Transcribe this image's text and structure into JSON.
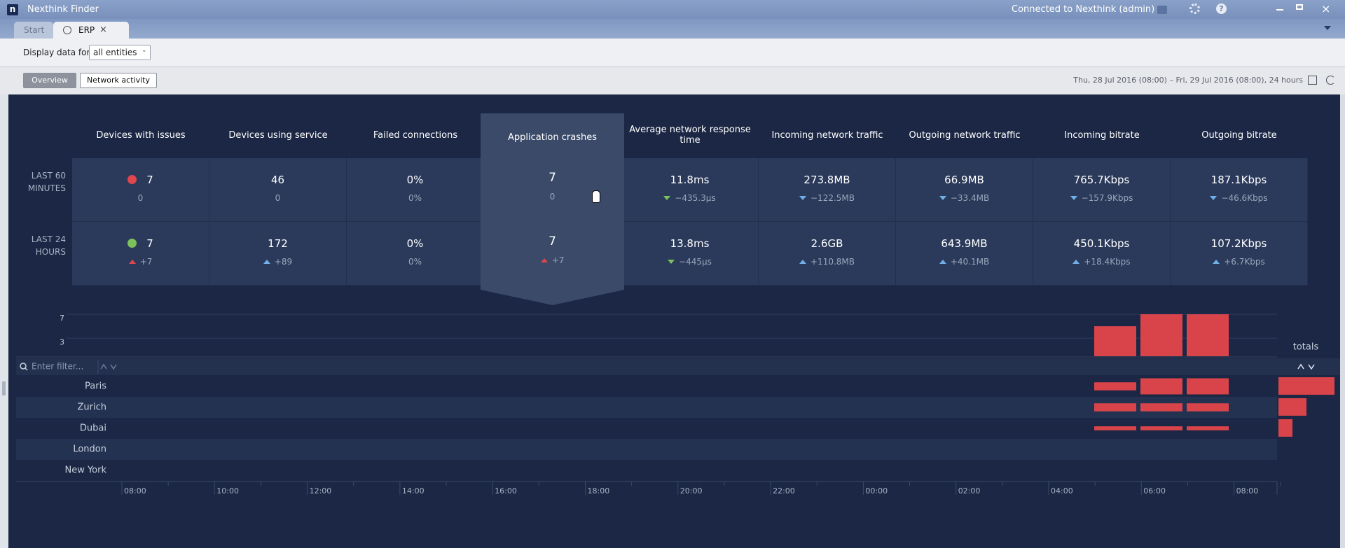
{
  "window": {
    "title": "Nexthink Finder",
    "connection": "Connected to Nexthink (admin)"
  },
  "tabs": [
    {
      "label": "Start",
      "active": false
    },
    {
      "label": "ERP",
      "active": true
    }
  ],
  "filter": {
    "label": "Display data for",
    "value": "all entities"
  },
  "views": [
    {
      "label": "Overview",
      "active": true
    },
    {
      "label": "Network activity",
      "active": false
    }
  ],
  "period": "Thu, 28 Jul 2016 (08:00) – Fri, 29 Jul 2016 (08:00), 24 hours",
  "metrics": {
    "columns": [
      "Devices with issues",
      "Devices using service",
      "Failed connections",
      "Application crashes",
      "Average network response time",
      "Incoming network traffic",
      "Outgoing network traffic",
      "Incoming bitrate",
      "Outgoing bitrate"
    ],
    "selected_column": 3,
    "rows": [
      {
        "label": "LAST 60 MINUTES",
        "cells": [
          {
            "value": "7",
            "delta": "0",
            "status_color": "#e0464c"
          },
          {
            "value": "46",
            "delta": "0"
          },
          {
            "value": "0%",
            "delta": "0%"
          },
          {
            "value": "7",
            "delta": "0"
          },
          {
            "value": "11.8ms",
            "delta": "−435.3µs",
            "trend": "down",
            "trend_color": "#7cc25a"
          },
          {
            "value": "273.8MB",
            "delta": "−122.5MB",
            "trend": "down",
            "trend_color": "#6fb0e8"
          },
          {
            "value": "66.9MB",
            "delta": "−33.4MB",
            "trend": "down",
            "trend_color": "#6fb0e8"
          },
          {
            "value": "765.7Kbps",
            "delta": "−157.9Kbps",
            "trend": "down",
            "trend_color": "#6fb0e8"
          },
          {
            "value": "187.1Kbps",
            "delta": "−46.6Kbps",
            "trend": "down",
            "trend_color": "#6fb0e8"
          }
        ]
      },
      {
        "label": "LAST 24 HOURS",
        "cells": [
          {
            "value": "7",
            "delta": "+7",
            "trend": "up",
            "trend_color": "#e0464c",
            "status_color": "#7cc25a"
          },
          {
            "value": "172",
            "delta": "+89",
            "trend": "up",
            "trend_color": "#6fb0e8"
          },
          {
            "value": "0%",
            "delta": "0%"
          },
          {
            "value": "7",
            "delta": "+7",
            "trend": "up",
            "trend_color": "#e0464c"
          },
          {
            "value": "13.8ms",
            "delta": "−445µs",
            "trend": "down",
            "trend_color": "#7cc25a"
          },
          {
            "value": "2.6GB",
            "delta": "+110.8MB",
            "trend": "up",
            "trend_color": "#6fb0e8"
          },
          {
            "value": "643.9MB",
            "delta": "+40.1MB",
            "trend": "up",
            "trend_color": "#6fb0e8"
          },
          {
            "value": "450.1Kbps",
            "delta": "+18.4Kbps",
            "trend": "up",
            "trend_color": "#6fb0e8"
          },
          {
            "value": "107.2Kbps",
            "delta": "+6.7Kbps",
            "trend": "up",
            "trend_color": "#6fb0e8"
          }
        ]
      }
    ]
  },
  "timeline": {
    "ylim": [
      0,
      7
    ],
    "yticks": [
      7,
      3
    ],
    "values": [
      5,
      7,
      7
    ],
    "color": "#d9444a",
    "filter_placeholder": "Enter filter...",
    "totals_label": "totals",
    "location_lim": [
      0,
      4
    ],
    "totals_lim": [
      0,
      4
    ],
    "locations": [
      {
        "name": "Paris",
        "values": [
          2,
          4,
          4
        ],
        "total": 4
      },
      {
        "name": "Zurich",
        "values": [
          2,
          2,
          2
        ],
        "total": 2
      },
      {
        "name": "Dubai",
        "values": [
          1,
          1,
          1
        ],
        "total": 1
      },
      {
        "name": "London",
        "values": [
          0,
          0,
          0
        ],
        "total": 0
      },
      {
        "name": "New York",
        "values": [
          0,
          0,
          0
        ],
        "total": 0
      }
    ],
    "xticks": [
      "08:00",
      "10:00",
      "12:00",
      "14:00",
      "16:00",
      "18:00",
      "20:00",
      "22:00",
      "00:00",
      "02:00",
      "04:00",
      "06:00",
      "08:00"
    ]
  }
}
